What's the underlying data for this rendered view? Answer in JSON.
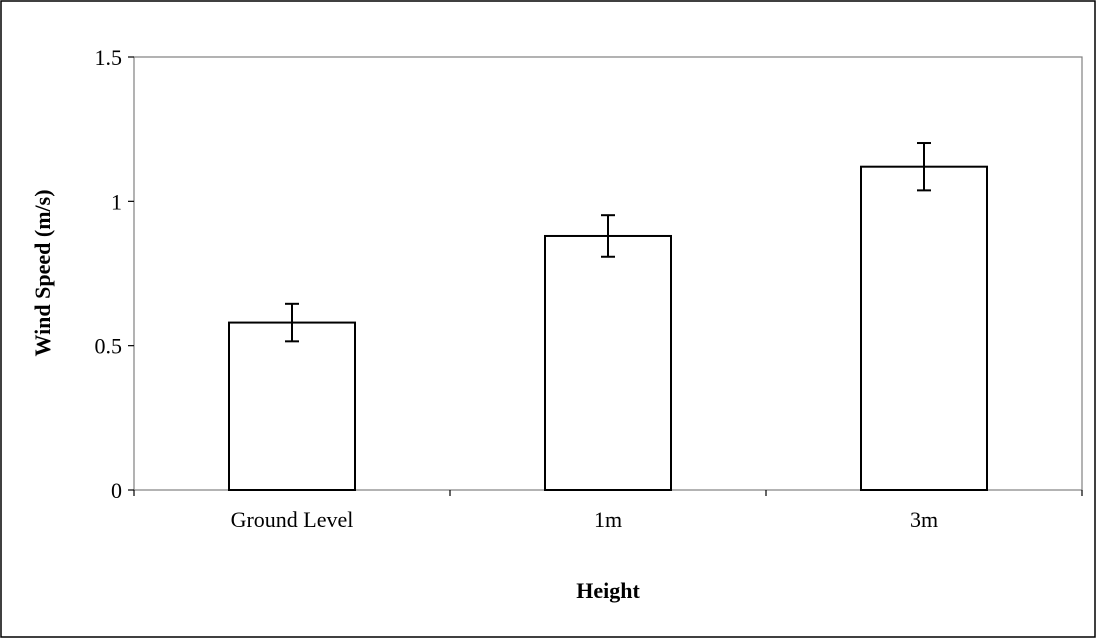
{
  "chart_data": {
    "type": "bar",
    "title": "",
    "xlabel": "Height",
    "ylabel": "Wind Speed (m/s)",
    "categories": [
      "Ground Level",
      "1m",
      "3m"
    ],
    "values": [
      0.58,
      0.88,
      1.12
    ],
    "error_bars": [
      0.065,
      0.072,
      0.082
    ],
    "ylim": [
      0,
      1.5
    ],
    "yticks": [
      0,
      0.5,
      1,
      1.5
    ],
    "ytick_labels": [
      "0",
      "0.5",
      "1",
      "1.5"
    ],
    "grid": false,
    "legend": "none",
    "colors": {
      "bar_fill": "#ffffff",
      "bar_stroke": "#000000",
      "axis": "#808080",
      "frame": "#000000"
    }
  }
}
